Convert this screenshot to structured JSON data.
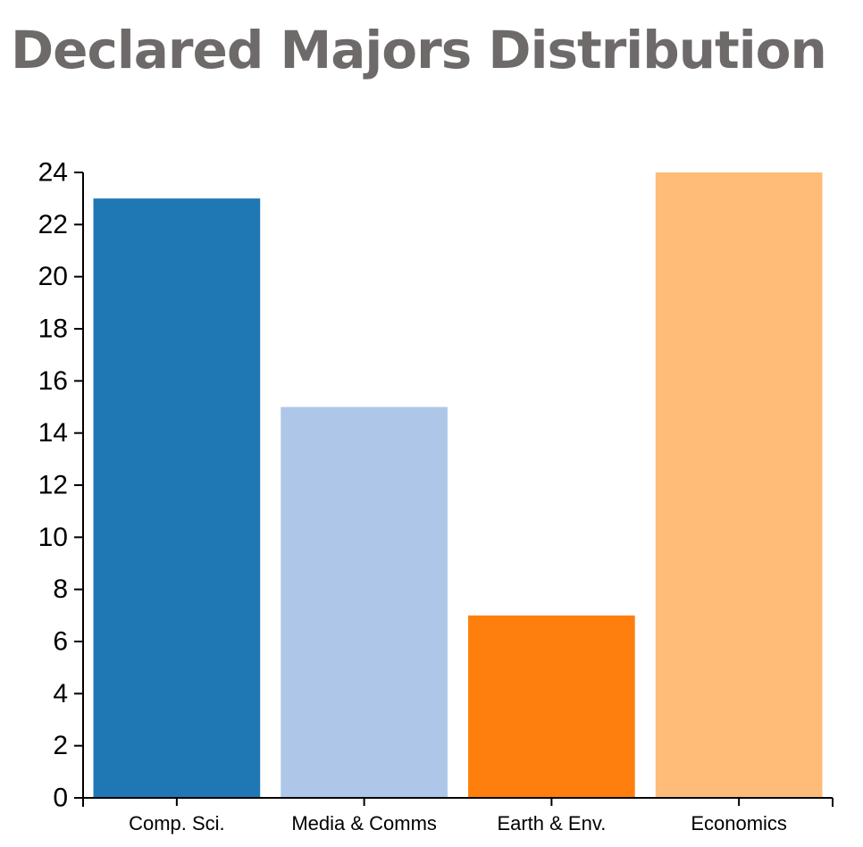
{
  "chart_data": {
    "type": "bar",
    "title": "Declared Majors Distribution",
    "categories": [
      "Comp. Sci.",
      "Media & Comms",
      "Earth & Env.",
      "Economics"
    ],
    "values": [
      23,
      15,
      7,
      24
    ],
    "colors": [
      "#1f77b4",
      "#aec7e8",
      "#ff7f0e",
      "#ffbb78"
    ],
    "ylim": [
      0,
      24
    ],
    "yticks": [
      0,
      2,
      4,
      6,
      8,
      10,
      12,
      14,
      16,
      18,
      20,
      22,
      24
    ],
    "xlabel": "",
    "ylabel": "",
    "grid": false,
    "legend": false
  }
}
